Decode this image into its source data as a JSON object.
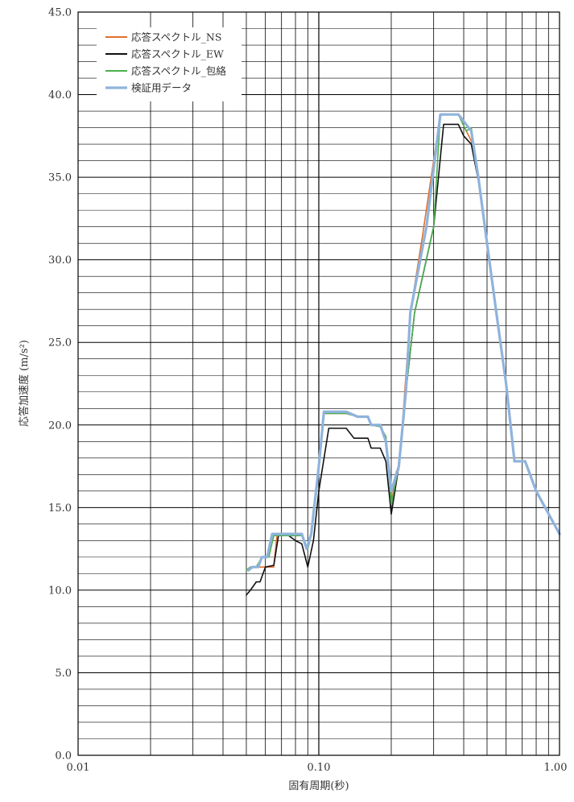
{
  "chart_data": {
    "type": "line",
    "title": "",
    "xlabel": "固有周期(秒)",
    "ylabel": "応答加速度 (m/s²)",
    "x_scale": "log",
    "xlim": [
      0.01,
      1.0
    ],
    "ylim": [
      0,
      45
    ],
    "grid": true,
    "legend_position": "top-left",
    "x_tick_labels": [
      "0.01",
      "0.10",
      "1.00"
    ],
    "x_ticks": [
      0.01,
      0.1,
      1.0
    ],
    "y_tick_labels": [
      "0.0",
      "5.0",
      "10.0",
      "15.0",
      "20.0",
      "25.0",
      "30.0",
      "35.0",
      "40.0",
      "45.0"
    ],
    "y_ticks": [
      0,
      5,
      10,
      15,
      20,
      25,
      30,
      35,
      40,
      45
    ],
    "series": [
      {
        "name": "応答スペクトル_NS",
        "color": "#e07030",
        "width": 1.6,
        "points": [
          [
            0.05,
            11.2
          ],
          [
            0.052,
            11.4
          ],
          [
            0.06,
            11.4
          ],
          [
            0.065,
            11.4
          ],
          [
            0.067,
            13.3
          ],
          [
            0.07,
            13.3
          ],
          [
            0.08,
            13.3
          ],
          [
            0.085,
            13.3
          ],
          [
            0.09,
            12.5
          ],
          [
            0.093,
            13.3
          ],
          [
            0.1,
            17.5
          ],
          [
            0.105,
            20.7
          ],
          [
            0.13,
            20.7
          ],
          [
            0.145,
            20.5
          ],
          [
            0.16,
            20.5
          ],
          [
            0.165,
            20.0
          ],
          [
            0.18,
            19.9
          ],
          [
            0.19,
            19.3
          ],
          [
            0.2,
            15.2
          ],
          [
            0.21,
            17.2
          ],
          [
            0.215,
            17.3
          ],
          [
            0.225,
            21.0
          ],
          [
            0.24,
            26.8
          ],
          [
            0.27,
            31.5
          ],
          [
            0.32,
            38.8
          ],
          [
            0.38,
            38.8
          ],
          [
            0.41,
            37.8
          ],
          [
            0.43,
            37.2
          ],
          [
            0.46,
            35.0
          ],
          [
            0.5,
            31.0
          ],
          [
            0.55,
            26.5
          ],
          [
            0.6,
            22.5
          ],
          [
            0.65,
            17.8
          ],
          [
            0.72,
            17.8
          ],
          [
            0.8,
            16.0
          ],
          [
            1.0,
            13.4
          ]
        ]
      },
      {
        "name": "応答スペクトル_EW",
        "color": "#111111",
        "width": 1.6,
        "points": [
          [
            0.05,
            9.7
          ],
          [
            0.052,
            10.0
          ],
          [
            0.055,
            10.5
          ],
          [
            0.057,
            10.5
          ],
          [
            0.06,
            11.4
          ],
          [
            0.065,
            11.5
          ],
          [
            0.068,
            13.3
          ],
          [
            0.075,
            13.3
          ],
          [
            0.08,
            13.0
          ],
          [
            0.085,
            12.8
          ],
          [
            0.09,
            11.4
          ],
          [
            0.095,
            13.0
          ],
          [
            0.1,
            16.0
          ],
          [
            0.11,
            19.8
          ],
          [
            0.13,
            19.8
          ],
          [
            0.14,
            19.2
          ],
          [
            0.16,
            19.2
          ],
          [
            0.165,
            18.6
          ],
          [
            0.18,
            18.6
          ],
          [
            0.19,
            17.8
          ],
          [
            0.2,
            14.6
          ],
          [
            0.215,
            17.5
          ],
          [
            0.23,
            22.0
          ],
          [
            0.25,
            26.8
          ],
          [
            0.3,
            32.0
          ],
          [
            0.33,
            38.2
          ],
          [
            0.38,
            38.2
          ],
          [
            0.4,
            37.5
          ],
          [
            0.43,
            37.0
          ],
          [
            0.46,
            34.8
          ],
          [
            0.5,
            31.0
          ],
          [
            0.55,
            26.5
          ],
          [
            0.6,
            22.5
          ],
          [
            0.65,
            17.8
          ],
          [
            0.72,
            17.8
          ],
          [
            0.8,
            16.0
          ],
          [
            1.0,
            13.4
          ]
        ]
      },
      {
        "name": "応答スペクトル_包絡",
        "color": "#4caf50",
        "width": 1.6,
        "points": [
          [
            0.05,
            11.2
          ],
          [
            0.052,
            11.4
          ],
          [
            0.055,
            11.4
          ],
          [
            0.058,
            12.0
          ],
          [
            0.062,
            12.0
          ],
          [
            0.065,
            13.3
          ],
          [
            0.085,
            13.3
          ],
          [
            0.09,
            12.5
          ],
          [
            0.093,
            13.3
          ],
          [
            0.1,
            17.5
          ],
          [
            0.105,
            20.7
          ],
          [
            0.13,
            20.7
          ],
          [
            0.145,
            20.5
          ],
          [
            0.16,
            20.5
          ],
          [
            0.165,
            20.0
          ],
          [
            0.18,
            19.9
          ],
          [
            0.19,
            19.3
          ],
          [
            0.2,
            15.2
          ],
          [
            0.215,
            17.5
          ],
          [
            0.23,
            22.0
          ],
          [
            0.25,
            26.8
          ],
          [
            0.3,
            32.0
          ],
          [
            0.32,
            38.8
          ],
          [
            0.38,
            38.8
          ],
          [
            0.41,
            37.8
          ],
          [
            0.43,
            38.0
          ],
          [
            0.46,
            35.0
          ],
          [
            0.5,
            31.0
          ],
          [
            0.55,
            26.5
          ],
          [
            0.6,
            22.5
          ],
          [
            0.65,
            17.8
          ],
          [
            0.72,
            17.8
          ],
          [
            0.8,
            16.0
          ],
          [
            1.0,
            13.4
          ]
        ]
      },
      {
        "name": "検証用データ",
        "color": "#8fb3dc",
        "width": 3.2,
        "points": [
          [
            0.051,
            11.2
          ],
          [
            0.053,
            11.4
          ],
          [
            0.056,
            11.4
          ],
          [
            0.058,
            12.0
          ],
          [
            0.061,
            12.0
          ],
          [
            0.064,
            13.4
          ],
          [
            0.085,
            13.4
          ],
          [
            0.089,
            12.5
          ],
          [
            0.093,
            13.4
          ],
          [
            0.1,
            17.5
          ],
          [
            0.105,
            20.8
          ],
          [
            0.13,
            20.8
          ],
          [
            0.145,
            20.5
          ],
          [
            0.16,
            20.5
          ],
          [
            0.165,
            20.0
          ],
          [
            0.18,
            20.0
          ],
          [
            0.19,
            19.0
          ],
          [
            0.2,
            16.0
          ],
          [
            0.215,
            17.5
          ],
          [
            0.23,
            22.0
          ],
          [
            0.24,
            26.8
          ],
          [
            0.28,
            32.0
          ],
          [
            0.32,
            38.8
          ],
          [
            0.38,
            38.8
          ],
          [
            0.43,
            37.8
          ],
          [
            0.46,
            35.0
          ],
          [
            0.5,
            31.0
          ],
          [
            0.55,
            26.5
          ],
          [
            0.6,
            22.5
          ],
          [
            0.65,
            17.8
          ],
          [
            0.72,
            17.8
          ],
          [
            0.8,
            16.0
          ],
          [
            1.0,
            13.4
          ]
        ]
      }
    ]
  }
}
